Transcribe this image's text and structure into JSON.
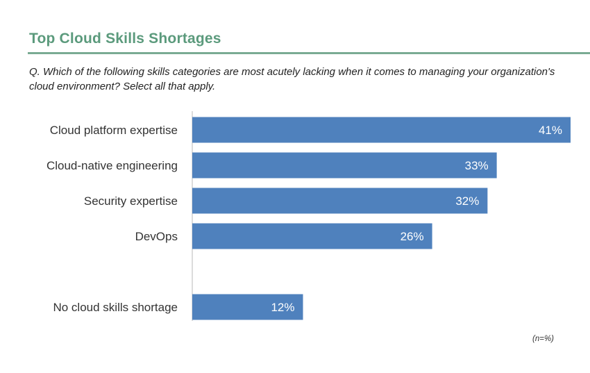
{
  "header": {
    "title": "Top Cloud Skills Shortages",
    "question": "Q. Which of the following skills categories are most acutely lacking when it comes to managing your organization's cloud environment? Select all that apply."
  },
  "footnote": "(n=%)",
  "colors": {
    "bar": "#4f81bd",
    "title": "#5b9a7c",
    "axis": "#d0d0d0"
  },
  "chart_data": {
    "type": "bar",
    "orientation": "horizontal",
    "categories": [
      "Cloud platform expertise",
      "Cloud-native engineering",
      "Security expertise",
      "DevOps",
      "No cloud skills shortage"
    ],
    "values": [
      41,
      33,
      32,
      26,
      12
    ],
    "value_labels": [
      "41%",
      "33%",
      "32%",
      "26%",
      "12%"
    ],
    "unit": "%",
    "xlim": [
      0,
      41
    ],
    "grid": false,
    "legend": "none"
  }
}
